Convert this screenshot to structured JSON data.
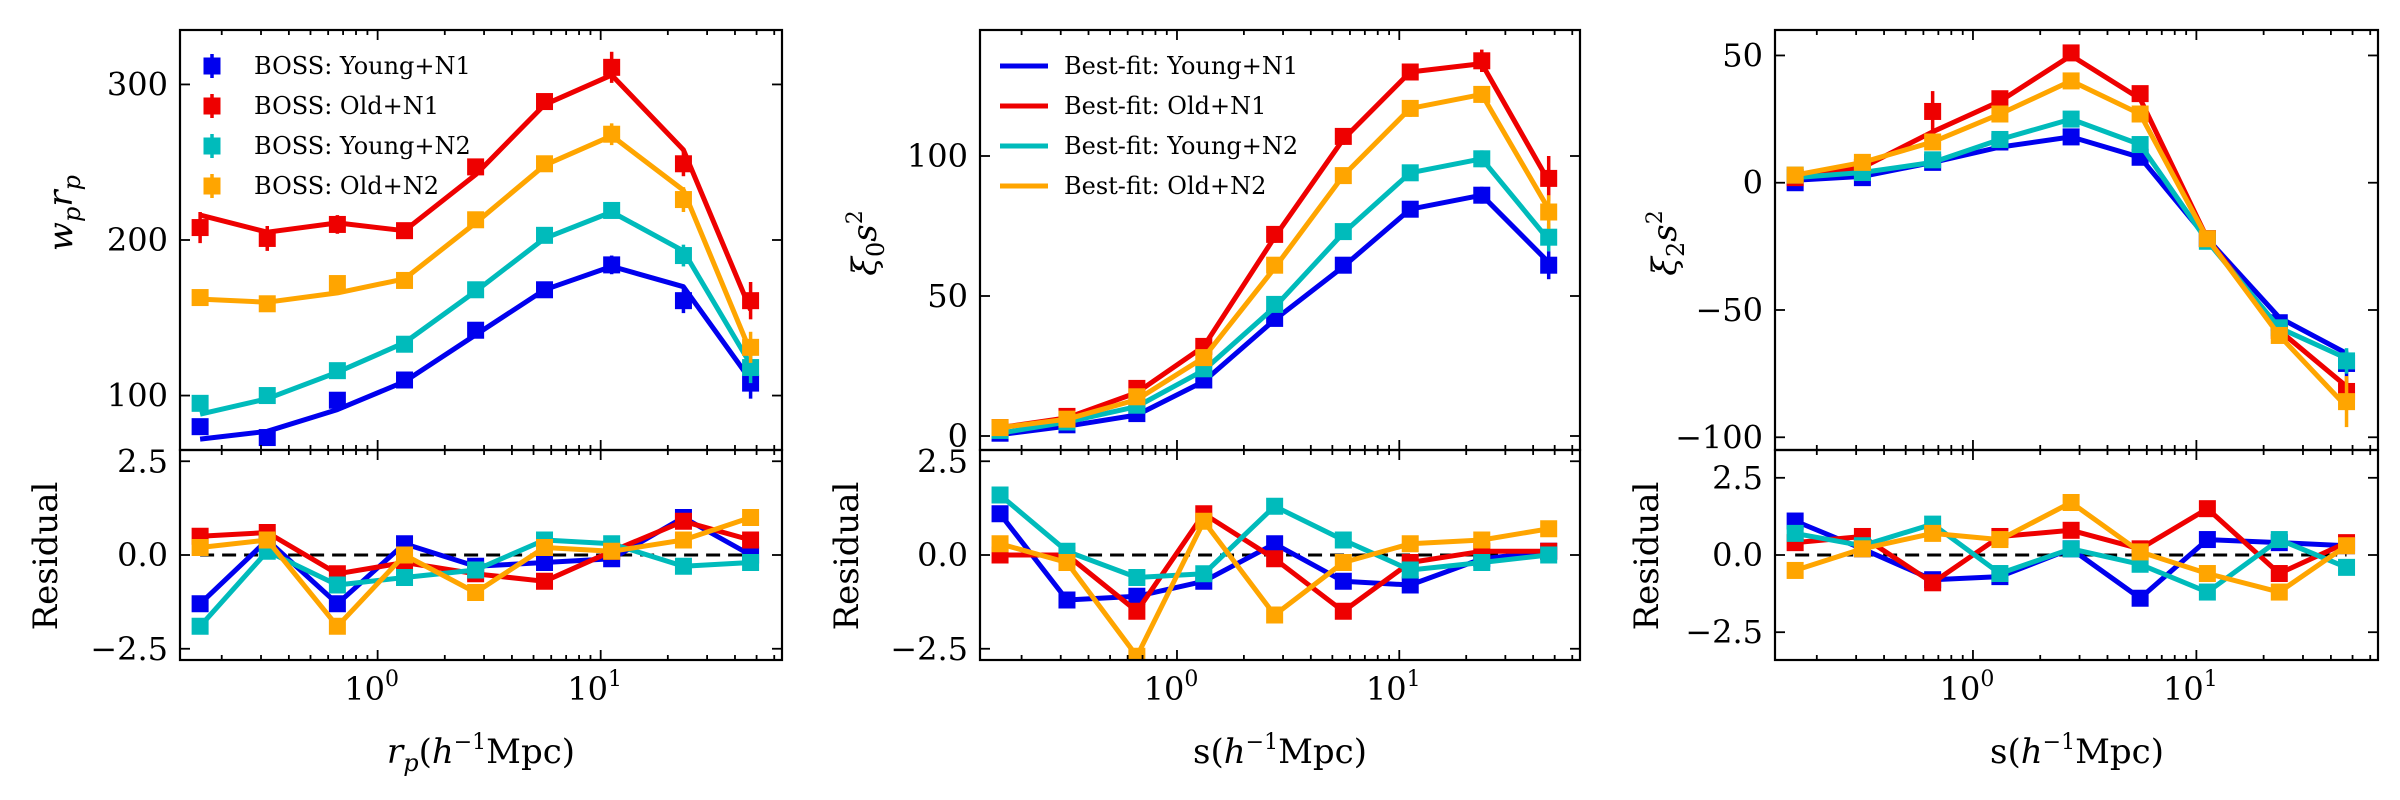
{
  "chart_data": [
    {
      "id": "wp",
      "type": "line",
      "xscale": "log",
      "xlim": [
        0.13,
        65
      ],
      "ylim": [
        65,
        335
      ],
      "yticks": [
        100,
        200,
        300
      ],
      "ytick_labels": [
        "100",
        "200",
        "300"
      ],
      "xtick_labels": [
        "10^0",
        "10^1"
      ],
      "ylabel": "w_p r_p",
      "xlabel": "r_p(h^{-1}Mpc)",
      "legend": {
        "position": "upper-left",
        "kind": "markers",
        "entries": [
          "BOSS: Young+N1",
          "BOSS: Old+N1",
          "BOSS: Young+N2",
          "BOSS: Old+N2"
        ]
      },
      "x": [
        0.16,
        0.32,
        0.66,
        1.32,
        2.75,
        5.6,
        11.2,
        23.5,
        47
      ],
      "series": [
        {
          "name": "Young+N1",
          "color": "#0000ee",
          "data": [
            80,
            73,
            97,
            110,
            142,
            168,
            184,
            161,
            108
          ],
          "err": [
            5,
            4,
            4,
            4,
            4,
            4,
            6,
            8,
            10
          ],
          "fit": [
            72,
            77,
            91,
            109,
            139,
            168,
            183,
            170,
            110
          ]
        },
        {
          "name": "Old+N1",
          "color": "#ee0000",
          "data": [
            208,
            201,
            210,
            206,
            247,
            289,
            311,
            249,
            161
          ],
          "err": [
            10,
            8,
            6,
            5,
            5,
            5,
            10,
            8,
            12
          ],
          "fit": [
            216,
            205,
            211,
            206,
            242,
            287,
            306,
            258,
            155
          ]
        },
        {
          "name": "Young+N2",
          "color": "#00bbbb",
          "data": [
            95,
            100,
            116,
            133,
            168,
            203,
            219,
            190,
            118
          ],
          "err": [
            4,
            4,
            4,
            4,
            4,
            4,
            5,
            7,
            10
          ],
          "fit": [
            88,
            98,
            115,
            134,
            167,
            201,
            218,
            193,
            120
          ]
        },
        {
          "name": "Old+N2",
          "color": "#ffa500",
          "data": [
            163,
            159,
            172,
            174,
            213,
            249,
            268,
            226,
            131
          ],
          "err": [
            4,
            4,
            4,
            4,
            4,
            4,
            7,
            8,
            10
          ],
          "fit": [
            162,
            160,
            166,
            175,
            211,
            248,
            267,
            232,
            128
          ]
        }
      ],
      "residual": {
        "ylim": [
          -2.8,
          2.8
        ],
        "yticks": [
          -2.5,
          0,
          2.5
        ],
        "ytick_labels": [
          "−2.5",
          "0.0",
          "2.5"
        ],
        "ylabel": "Residual",
        "series": [
          {
            "name": "Young+N1",
            "color": "#0000ee",
            "values": [
              -1.3,
              0.4,
              -1.3,
              0.3,
              -0.3,
              -0.2,
              -0.1,
              1.0,
              0.0
            ]
          },
          {
            "name": "Old+N1",
            "color": "#ee0000",
            "values": [
              0.5,
              0.6,
              -0.5,
              -0.2,
              -0.5,
              -0.7,
              0.1,
              0.9,
              0.4
            ]
          },
          {
            "name": "Young+N2",
            "color": "#00bbbb",
            "values": [
              -1.9,
              0.1,
              -0.8,
              -0.6,
              -0.4,
              0.4,
              0.3,
              -0.3,
              -0.2
            ]
          },
          {
            "name": "Old+N2",
            "color": "#ffa500",
            "values": [
              0.2,
              0.4,
              -1.9,
              0.0,
              -1.0,
              0.2,
              0.1,
              0.4,
              1.0
            ]
          }
        ]
      }
    },
    {
      "id": "xi0",
      "type": "line",
      "xscale": "log",
      "xlim": [
        0.13,
        65
      ],
      "ylim": [
        -5,
        145
      ],
      "yticks": [
        0,
        50,
        100
      ],
      "ytick_labels": [
        "0",
        "50",
        "100"
      ],
      "xtick_labels": [
        "10^0",
        "10^1"
      ],
      "ylabel": "ξ_0 s^2",
      "xlabel": "s(h^{-1}Mpc)",
      "legend": {
        "position": "upper-left",
        "kind": "lines",
        "entries": [
          "Best-fit: Young+N1",
          "Best-fit: Old+N1",
          "Best-fit: Young+N2",
          "Best-fit: Old+N2"
        ]
      },
      "x": [
        0.16,
        0.32,
        0.66,
        1.32,
        2.75,
        5.6,
        11.2,
        23.5,
        47
      ],
      "series": [
        {
          "name": "Young+N1",
          "color": "#0000ee",
          "data": [
            1,
            4,
            8,
            20,
            42,
            61,
            81,
            86,
            61
          ],
          "err": [
            1,
            1,
            1,
            1,
            2,
            2,
            2,
            3,
            5
          ],
          "fit": [
            0.5,
            3.5,
            7.5,
            19.5,
            41.5,
            60.5,
            81,
            86,
            62
          ]
        },
        {
          "name": "Old+N1",
          "color": "#ee0000",
          "data": [
            3,
            7,
            17,
            32,
            72,
            107,
            130,
            134,
            92
          ],
          "err": [
            1,
            1,
            2,
            2,
            3,
            3,
            3,
            4,
            8
          ],
          "fit": [
            3,
            6.5,
            15.5,
            32,
            71,
            106,
            130,
            133,
            91
          ]
        },
        {
          "name": "Young+N2",
          "color": "#00bbbb",
          "data": [
            2,
            5,
            11,
            24,
            47,
            73,
            94,
            99,
            71
          ],
          "err": [
            1,
            1,
            1,
            1,
            2,
            2,
            2,
            3,
            5
          ],
          "fit": [
            1,
            5,
            10.5,
            23.5,
            46,
            72.5,
            94,
            99,
            70
          ]
        },
        {
          "name": "Old+N2",
          "color": "#ffa500",
          "data": [
            3,
            6,
            14,
            28,
            61,
            93,
            117,
            122,
            80
          ],
          "err": [
            1,
            1,
            1,
            2,
            2,
            2,
            3,
            3,
            6
          ],
          "fit": [
            3,
            6,
            13,
            28,
            60,
            93,
            117,
            122,
            81
          ]
        }
      ],
      "residual": {
        "ylim": [
          -2.8,
          2.8
        ],
        "yticks": [
          -2.5,
          0,
          2.5
        ],
        "ytick_labels": [
          "−2.5",
          "0.0",
          "2.5"
        ],
        "ylabel": "Residual",
        "series": [
          {
            "name": "Young+N1",
            "color": "#0000ee",
            "values": [
              1.1,
              -1.2,
              -1.1,
              -0.7,
              0.3,
              -0.7,
              -0.8,
              -0.1,
              0.1
            ]
          },
          {
            "name": "Old+N1",
            "color": "#ee0000",
            "values": [
              0.0,
              0.0,
              -1.5,
              1.1,
              -0.1,
              -1.5,
              -0.2,
              0.1,
              0.1
            ]
          },
          {
            "name": "Young+N2",
            "color": "#00bbbb",
            "values": [
              1.6,
              0.1,
              -0.6,
              -0.5,
              1.3,
              0.4,
              -0.4,
              -0.2,
              0.0
            ]
          },
          {
            "name": "Old+N2",
            "color": "#ffa500",
            "values": [
              0.3,
              -0.2,
              -2.7,
              0.9,
              -1.6,
              -0.2,
              0.3,
              0.4,
              0.7
            ]
          }
        ]
      }
    },
    {
      "id": "xi2",
      "type": "line",
      "xscale": "log",
      "xlim": [
        0.13,
        65
      ],
      "ylim": [
        -105,
        60
      ],
      "yticks": [
        -100,
        -50,
        0,
        50
      ],
      "ytick_labels": [
        "−100",
        "−50",
        "0",
        "50"
      ],
      "xtick_labels": [
        "10^0",
        "10^1"
      ],
      "ylabel": "ξ_2 s^2",
      "xlabel": "s(h^{-1}Mpc)",
      "x": [
        0.16,
        0.32,
        0.66,
        1.32,
        2.75,
        5.6,
        11.2,
        23.5,
        47
      ],
      "series": [
        {
          "name": "Young+N1",
          "color": "#0000ee",
          "data": [
            0,
            2,
            8,
            16,
            18,
            10,
            -22,
            -55,
            -71
          ],
          "err": [
            1,
            1,
            2,
            2,
            2,
            2,
            2,
            3,
            5
          ],
          "fit": [
            1,
            2.5,
            8,
            14,
            18,
            10,
            -22,
            -53,
            -67
          ]
        },
        {
          "name": "Old+N1",
          "color": "#ee0000",
          "data": [
            2,
            6,
            28,
            33,
            51,
            35,
            -22,
            -58,
            -82
          ],
          "err": [
            1,
            2,
            8,
            2,
            2,
            2,
            2,
            3,
            6
          ],
          "fit": [
            2,
            6,
            20,
            32,
            50,
            33,
            -22,
            -58,
            -80
          ]
        },
        {
          "name": "Young+N2",
          "color": "#00bbbb",
          "data": [
            3,
            4,
            9,
            17,
            25,
            15,
            -23,
            -57,
            -70
          ],
          "err": [
            1,
            1,
            1,
            2,
            2,
            2,
            2,
            3,
            5
          ],
          "fit": [
            2,
            4,
            8,
            17,
            25,
            15,
            -23,
            -57,
            -69
          ]
        },
        {
          "name": "Old+N2",
          "color": "#ffa500",
          "data": [
            3,
            8,
            16,
            27,
            40,
            27,
            -22,
            -60,
            -86
          ],
          "err": [
            1,
            1,
            2,
            2,
            2,
            2,
            2,
            3,
            10
          ],
          "fit": [
            3,
            8,
            16,
            27,
            40,
            27,
            -22,
            -60,
            -88
          ]
        }
      ],
      "residual": {
        "ylim": [
          -3.4,
          3.4
        ],
        "yticks": [
          -2.5,
          0,
          2.5
        ],
        "ytick_labels": [
          "−2.5",
          "0.0",
          "2.5"
        ],
        "ylabel": "Residual",
        "series": [
          {
            "name": "Young+N1",
            "color": "#0000ee",
            "values": [
              1.1,
              0.2,
              -0.8,
              -0.7,
              0.2,
              -1.4,
              0.5,
              0.4,
              0.3
            ]
          },
          {
            "name": "Old+N1",
            "color": "#ee0000",
            "values": [
              0.4,
              0.6,
              -0.9,
              0.6,
              0.8,
              0.2,
              1.5,
              -0.6,
              0.4
            ]
          },
          {
            "name": "Young+N2",
            "color": "#00bbbb",
            "values": [
              0.7,
              0.3,
              1.0,
              -0.6,
              0.2,
              -0.3,
              -1.2,
              0.5,
              -0.4
            ]
          },
          {
            "name": "Old+N2",
            "color": "#ffa500",
            "values": [
              -0.5,
              0.2,
              0.7,
              0.5,
              1.7,
              0.1,
              -0.6,
              -1.2,
              0.3
            ]
          }
        ]
      }
    }
  ]
}
